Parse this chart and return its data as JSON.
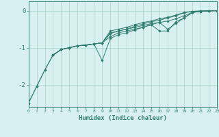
{
  "xlabel": "Humidex (Indice chaleur)",
  "bg_color": "#d8f0f0",
  "line_color": "#2e7d6e",
  "grid_color": "#b0d8d0",
  "xlim": [
    0,
    23
  ],
  "ylim": [
    -2.6,
    0.25
  ],
  "yticks": [
    0,
    -1,
    -2
  ],
  "xticks": [
    0,
    1,
    2,
    3,
    4,
    5,
    6,
    7,
    8,
    9,
    10,
    11,
    12,
    13,
    14,
    15,
    16,
    17,
    18,
    19,
    20,
    21,
    22,
    23
  ],
  "series": [
    {
      "x": [
        0,
        1,
        2,
        3,
        4,
        5,
        6,
        7,
        8,
        9,
        10,
        11,
        12,
        13,
        14,
        15,
        16,
        17,
        18,
        19,
        20,
        21,
        22,
        23
      ],
      "y": [
        -2.5,
        -2.05,
        -1.6,
        -1.2,
        -1.05,
        -1.0,
        -0.95,
        -0.93,
        -0.9,
        -0.87,
        -0.55,
        -0.5,
        -0.45,
        -0.38,
        -0.32,
        -0.28,
        -0.22,
        -0.18,
        -0.12,
        -0.05,
        -0.02,
        -0.01,
        0.0,
        0.0
      ]
    },
    {
      "x": [
        0,
        1,
        2,
        3,
        4,
        5,
        6,
        7,
        8,
        9,
        10,
        11,
        12,
        13,
        14,
        15,
        16,
        17,
        18,
        19,
        20,
        21,
        22,
        23
      ],
      "y": [
        -2.5,
        -2.05,
        -1.6,
        -1.2,
        -1.05,
        -1.0,
        -0.95,
        -0.93,
        -0.9,
        -0.87,
        -0.6,
        -0.55,
        -0.5,
        -0.42,
        -0.36,
        -0.3,
        -0.26,
        -0.2,
        -0.14,
        -0.06,
        -0.02,
        -0.01,
        0.0,
        0.0
      ]
    },
    {
      "x": [
        3,
        4,
        5,
        6,
        7,
        8,
        9,
        10,
        11,
        12,
        13,
        14,
        15,
        16,
        17,
        18,
        19,
        20,
        21,
        22,
        23
      ],
      "y": [
        -1.2,
        -1.05,
        -1.0,
        -0.95,
        -0.93,
        -0.9,
        -0.87,
        -0.62,
        -0.55,
        -0.5,
        -0.45,
        -0.4,
        -0.35,
        -0.32,
        -0.28,
        -0.22,
        -0.14,
        -0.05,
        -0.02,
        -0.01,
        0.0
      ]
    },
    {
      "x": [
        3,
        4,
        5,
        6,
        7,
        8,
        9,
        10,
        11,
        12,
        13,
        14,
        15,
        16,
        17,
        18,
        19,
        20,
        21,
        22,
        23
      ],
      "y": [
        -1.2,
        -1.05,
        -1.0,
        -0.95,
        -0.93,
        -0.9,
        -1.35,
        -0.75,
        -0.65,
        -0.6,
        -0.52,
        -0.45,
        -0.38,
        -0.55,
        -0.55,
        -0.3,
        -0.2,
        -0.05,
        -0.02,
        -0.01,
        0.0
      ]
    },
    {
      "x": [
        3,
        4,
        5,
        6,
        7,
        8,
        9,
        10,
        11,
        12,
        13,
        14,
        15,
        16,
        17,
        18,
        19,
        20,
        21,
        22,
        23
      ],
      "y": [
        -1.2,
        -1.05,
        -1.0,
        -0.95,
        -0.93,
        -0.9,
        -0.87,
        -0.7,
        -0.6,
        -0.55,
        -0.5,
        -0.45,
        -0.38,
        -0.32,
        -0.5,
        -0.35,
        -0.2,
        -0.05,
        -0.02,
        -0.01,
        0.0
      ]
    }
  ]
}
